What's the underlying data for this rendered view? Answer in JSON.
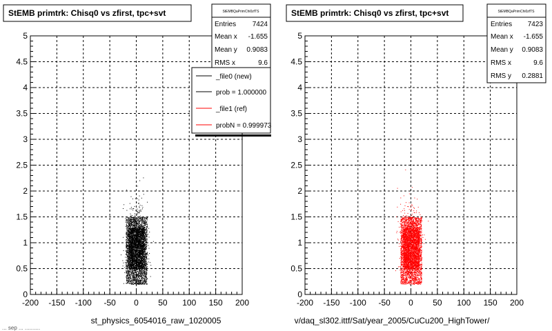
{
  "footer_text": "... sep ... ..........",
  "chart_data": [
    {
      "type": "scatter",
      "title": "StEMB primtrk: Chisq0 vs zfirst, tpc+svt",
      "xlabel": "st_physics_6054016_raw_1020005",
      "ylabel": "",
      "xlim": [
        -200,
        200
      ],
      "ylim": [
        0,
        5
      ],
      "x_ticks": [
        "-200",
        "-150",
        "-100",
        "-50",
        "0",
        "50",
        "100",
        "150",
        "200"
      ],
      "y_ticks": [
        "0",
        "0.5",
        "1",
        "1.5",
        "2",
        "2.5",
        "3",
        "3.5",
        "4",
        "4.5",
        "5"
      ],
      "grid": true,
      "marker_color": "#000000",
      "series": [
        {
          "name": "_file0 (new)",
          "color": "#000000",
          "dense_region": {
            "x": [
              -20,
              20
            ],
            "y": [
              0.2,
              1.5
            ]
          },
          "core_region": {
            "x": [
              -15,
              15
            ],
            "y": [
              0.5,
              1.3
            ]
          },
          "sparse_region": {
            "x": [
              -30,
              35
            ],
            "y": [
              0.2,
              2.5
            ]
          }
        }
      ],
      "stats": {
        "name": "StEMBQaPrimChi0zfTS",
        "entries": {
          "label": "Entries",
          "value": "7424"
        },
        "mean_x": {
          "label": "Mean x",
          "value": "-1.655"
        },
        "mean_y": {
          "label": "Mean y",
          "value": "0.9083"
        },
        "rms_x": {
          "label": "RMS x",
          "value": "9.6"
        }
      },
      "legend": [
        {
          "label": "_file0 (new)",
          "color": "#000000"
        },
        {
          "label": "prob = 1.000000",
          "color": "#000000"
        },
        {
          "label": "_file1 (ref)",
          "color": "#ff0000"
        },
        {
          "label": "probN = 0.999973",
          "color": "#ff0000"
        }
      ]
    },
    {
      "type": "scatter",
      "title": "StEMB primtrk: Chisq0 vs zfirst, tpc+svt",
      "xlabel": "v/daq_sl302.ittf/Sat/year_2005/CuCu200_HighTower/",
      "ylabel": "",
      "xlim": [
        -200,
        200
      ],
      "ylim": [
        0,
        5
      ],
      "x_ticks": [
        "-200",
        "-150",
        "-100",
        "-50",
        "0",
        "50",
        "100",
        "150",
        "200"
      ],
      "y_ticks": [
        "0",
        "0.5",
        "1",
        "1.5",
        "2",
        "2.5",
        "3",
        "3.5",
        "4",
        "4.5",
        "5"
      ],
      "grid": true,
      "marker_color": "#ff0000",
      "series": [
        {
          "name": "_file1 (ref)",
          "color": "#ff0000",
          "dense_region": {
            "x": [
              -20,
              20
            ],
            "y": [
              0.2,
              1.5
            ]
          },
          "core_region": {
            "x": [
              -15,
              15
            ],
            "y": [
              0.5,
              1.3
            ]
          },
          "sparse_region": {
            "x": [
              -35,
              35
            ],
            "y": [
              0.2,
              2.5
            ]
          }
        }
      ],
      "stats": {
        "name": "StEMBQaPrimChi0zfTS",
        "entries": {
          "label": "Entries",
          "value": "7423"
        },
        "mean_x": {
          "label": "Mean x",
          "value": "-1.655"
        },
        "mean_y": {
          "label": "Mean y",
          "value": "0.9083"
        },
        "rms_x": {
          "label": "RMS x",
          "value": "9.6"
        },
        "rms_y": {
          "label": "RMS y",
          "value": "0.2881"
        }
      }
    }
  ]
}
